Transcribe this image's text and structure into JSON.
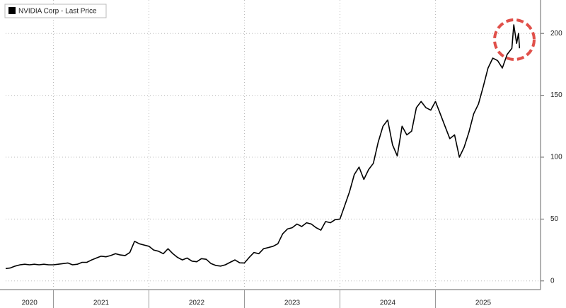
{
  "chart_data": {
    "type": "line",
    "legend": "NVIDIA Corp - Last Price",
    "series": [
      {
        "name": "NVIDIA Corp - Last Price",
        "color": "#000000",
        "x": [
          2020.5,
          2020.55,
          2020.6,
          2020.65,
          2020.7,
          2020.75,
          2020.8,
          2020.85,
          2020.9,
          2020.95,
          2021.0,
          2021.05,
          2021.1,
          2021.15,
          2021.2,
          2021.25,
          2021.3,
          2021.35,
          2021.4,
          2021.45,
          2021.5,
          2021.55,
          2021.6,
          2021.65,
          2021.7,
          2021.75,
          2021.8,
          2021.85,
          2021.9,
          2021.95,
          2022.0,
          2022.05,
          2022.1,
          2022.15,
          2022.2,
          2022.25,
          2022.3,
          2022.35,
          2022.4,
          2022.45,
          2022.5,
          2022.55,
          2022.6,
          2022.65,
          2022.7,
          2022.75,
          2022.8,
          2022.85,
          2022.9,
          2022.95,
          2023.0,
          2023.05,
          2023.1,
          2023.15,
          2023.2,
          2023.25,
          2023.3,
          2023.35,
          2023.4,
          2023.45,
          2023.5,
          2023.55,
          2023.6,
          2023.65,
          2023.7,
          2023.75,
          2023.8,
          2023.85,
          2023.9,
          2023.95,
          2024.0,
          2024.05,
          2024.1,
          2024.15,
          2024.2,
          2024.25,
          2024.3,
          2024.35,
          2024.4,
          2024.45,
          2024.5,
          2024.55,
          2024.6,
          2024.65,
          2024.7,
          2024.75,
          2024.8,
          2024.85,
          2024.9,
          2024.95,
          2025.0,
          2025.05,
          2025.1,
          2025.15,
          2025.2,
          2025.25,
          2025.3,
          2025.35,
          2025.4,
          2025.45,
          2025.5,
          2025.55,
          2025.6,
          2025.65,
          2025.7,
          2025.75,
          2025.8,
          2025.82,
          2025.85,
          2025.87,
          2025.88
        ],
        "values": [
          10,
          10.5,
          12,
          13,
          13.5,
          13,
          13.5,
          13,
          13.5,
          13,
          13,
          13.5,
          14,
          14.5,
          13,
          13.5,
          15,
          15,
          17,
          18.5,
          20,
          19.5,
          20.5,
          22,
          21,
          20.5,
          23,
          32,
          30,
          29,
          28,
          25,
          24,
          22,
          26,
          22,
          19,
          17,
          18.5,
          16,
          15.5,
          18,
          17.5,
          14,
          12.5,
          12,
          13,
          15,
          17,
          14.6,
          14.5,
          19,
          23,
          22,
          26,
          27,
          28,
          30,
          38,
          42,
          43,
          46,
          44,
          47,
          46,
          43,
          41,
          48,
          47,
          49.5,
          50,
          61,
          72,
          86,
          92,
          82,
          90,
          95,
          112,
          125,
          130,
          110,
          101,
          125,
          118,
          121,
          140,
          145,
          140,
          138,
          145,
          135,
          125,
          115,
          118,
          100,
          108,
          120,
          135,
          143,
          157,
          172,
          180,
          178,
          172,
          183,
          188,
          207,
          192,
          200,
          188
        ]
      }
    ],
    "xlim": [
      2020.5,
      2026.1
    ],
    "xticks": [
      {
        "value": 2020,
        "label": "2020"
      },
      {
        "value": 2021,
        "label": "2021"
      },
      {
        "value": 2022,
        "label": "2022"
      },
      {
        "value": 2023,
        "label": "2023"
      },
      {
        "value": 2024,
        "label": "2024"
      },
      {
        "value": 2025,
        "label": "2025"
      }
    ],
    "ylim": [
      -7,
      227
    ],
    "yticks": [
      0,
      50,
      100,
      150,
      200
    ],
    "grid": true
  }
}
